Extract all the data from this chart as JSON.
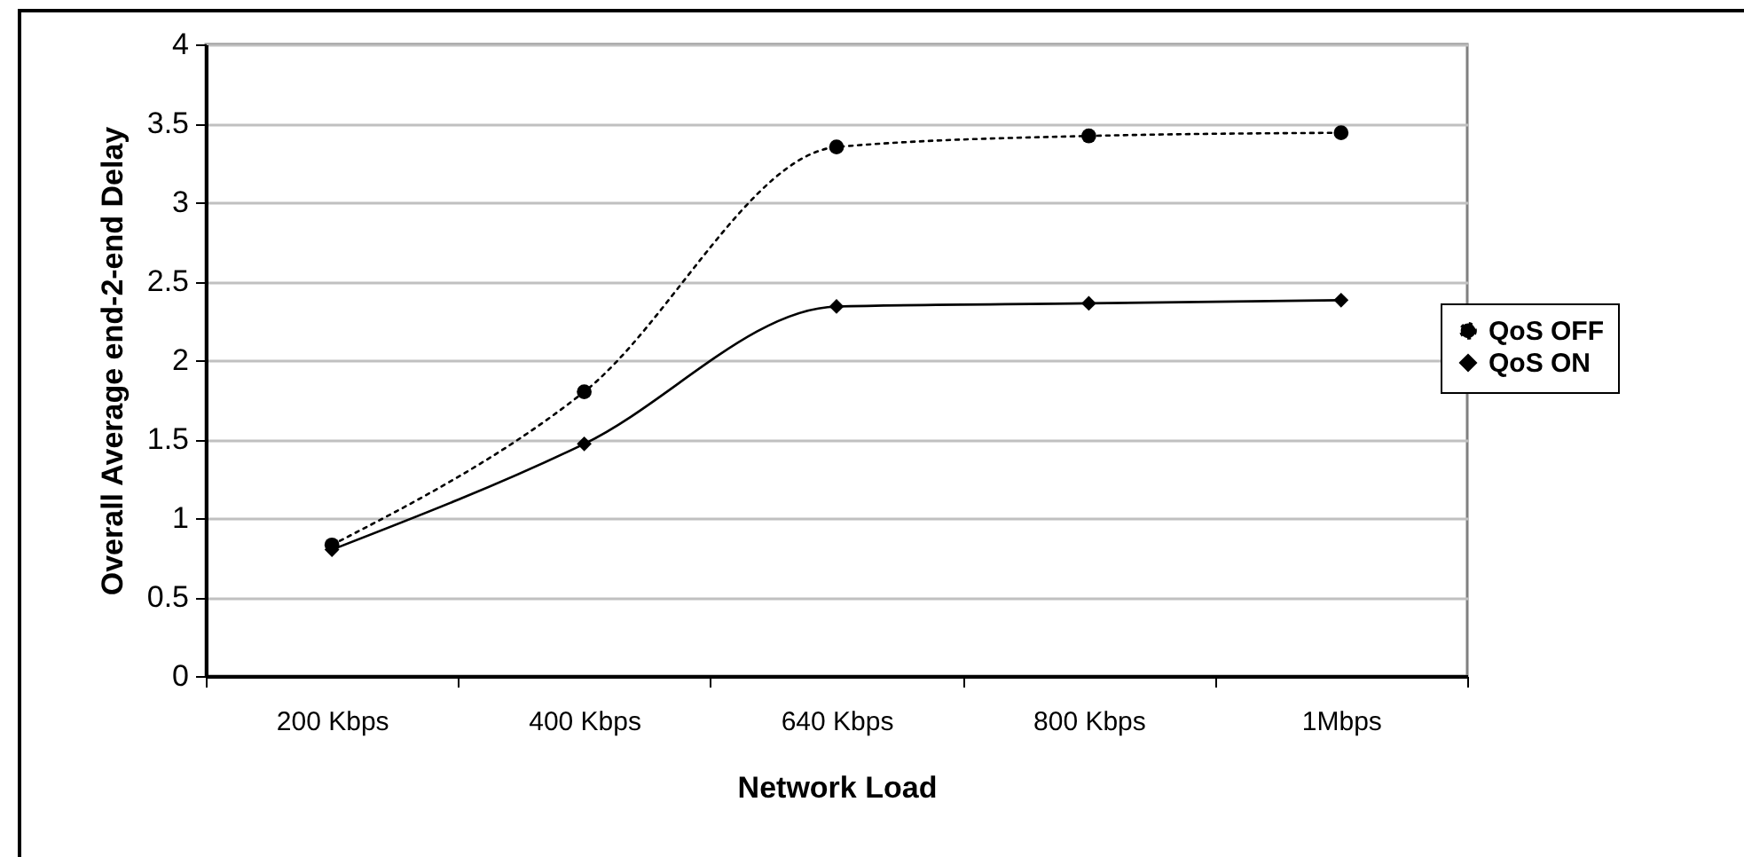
{
  "chart_data": {
    "type": "line",
    "xlabel": "Network Load",
    "ylabel": "Overall Average end-2-end Delay",
    "categories": [
      "200 Kbps",
      "400 Kbps",
      "640 Kbps",
      "800 Kbps",
      "1Mbps"
    ],
    "series": [
      {
        "name": "QoS OFF",
        "color": "#000000",
        "marker": "circle",
        "line_style": "dotted",
        "values": [
          0.83,
          1.8,
          3.35,
          3.42,
          3.44
        ]
      },
      {
        "name": "QoS ON",
        "color": "#000000",
        "marker": "diamond",
        "line_style": "solid",
        "values": [
          0.8,
          1.47,
          2.34,
          2.36,
          2.38
        ]
      }
    ],
    "ylim": [
      0,
      4
    ],
    "yticks": [
      0,
      0.5,
      1,
      1.5,
      2,
      2.5,
      3,
      3.5,
      4
    ],
    "grid": "y",
    "legend": "right"
  }
}
